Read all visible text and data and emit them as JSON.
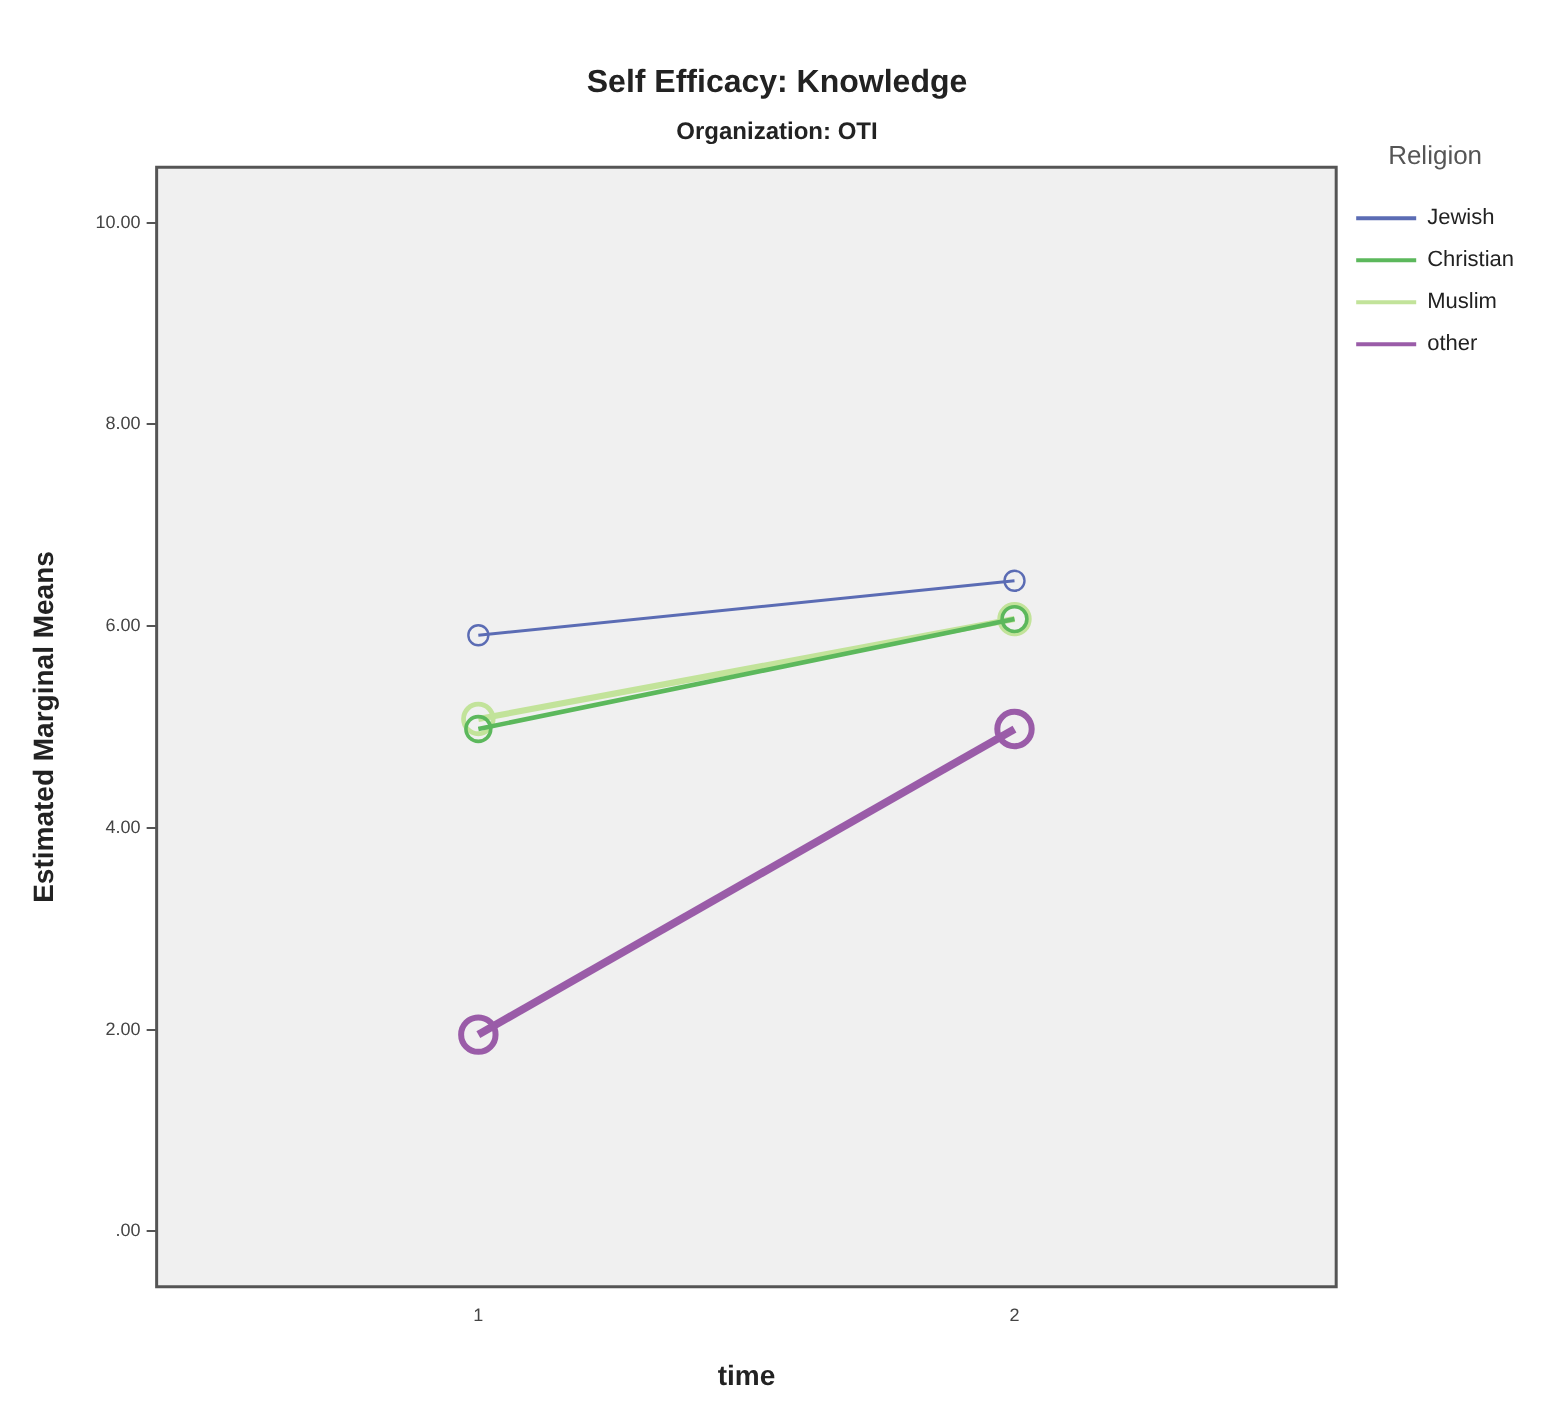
{
  "chart_data": {
    "type": "line",
    "title": "Self Efficacy: Knowledge",
    "subtitle": "Organization: OTI",
    "xlabel": "time",
    "ylabel": "Estimated Marginal Means",
    "legend_title": "Religion",
    "x": [
      1,
      2
    ],
    "xlim": [
      0.4,
      2.6
    ],
    "xticks": [
      1,
      2
    ],
    "ylim": [
      -0.55,
      10.55
    ],
    "yticks": [
      {
        "value": 0,
        "label": ".00"
      },
      {
        "value": 2,
        "label": "2.00"
      },
      {
        "value": 4,
        "label": "4.00"
      },
      {
        "value": 6,
        "label": "6.00"
      },
      {
        "value": 8,
        "label": "8.00"
      },
      {
        "value": 10,
        "label": "10.00"
      }
    ],
    "series": [
      {
        "name": "Jewish",
        "color": "#5b6cb4",
        "values": [
          5.91,
          6.45
        ]
      },
      {
        "name": "Christian",
        "color": "#5cb85c",
        "values": [
          4.98,
          6.07
        ]
      },
      {
        "name": "Muslim",
        "color": "#c2e39a",
        "values": [
          5.08,
          6.07
        ]
      },
      {
        "name": "other",
        "color": "#9a5ca8",
        "values": [
          1.95,
          4.98
        ]
      }
    ],
    "grid": false,
    "legend": "right",
    "marker": "circle",
    "line_style": "solid"
  }
}
